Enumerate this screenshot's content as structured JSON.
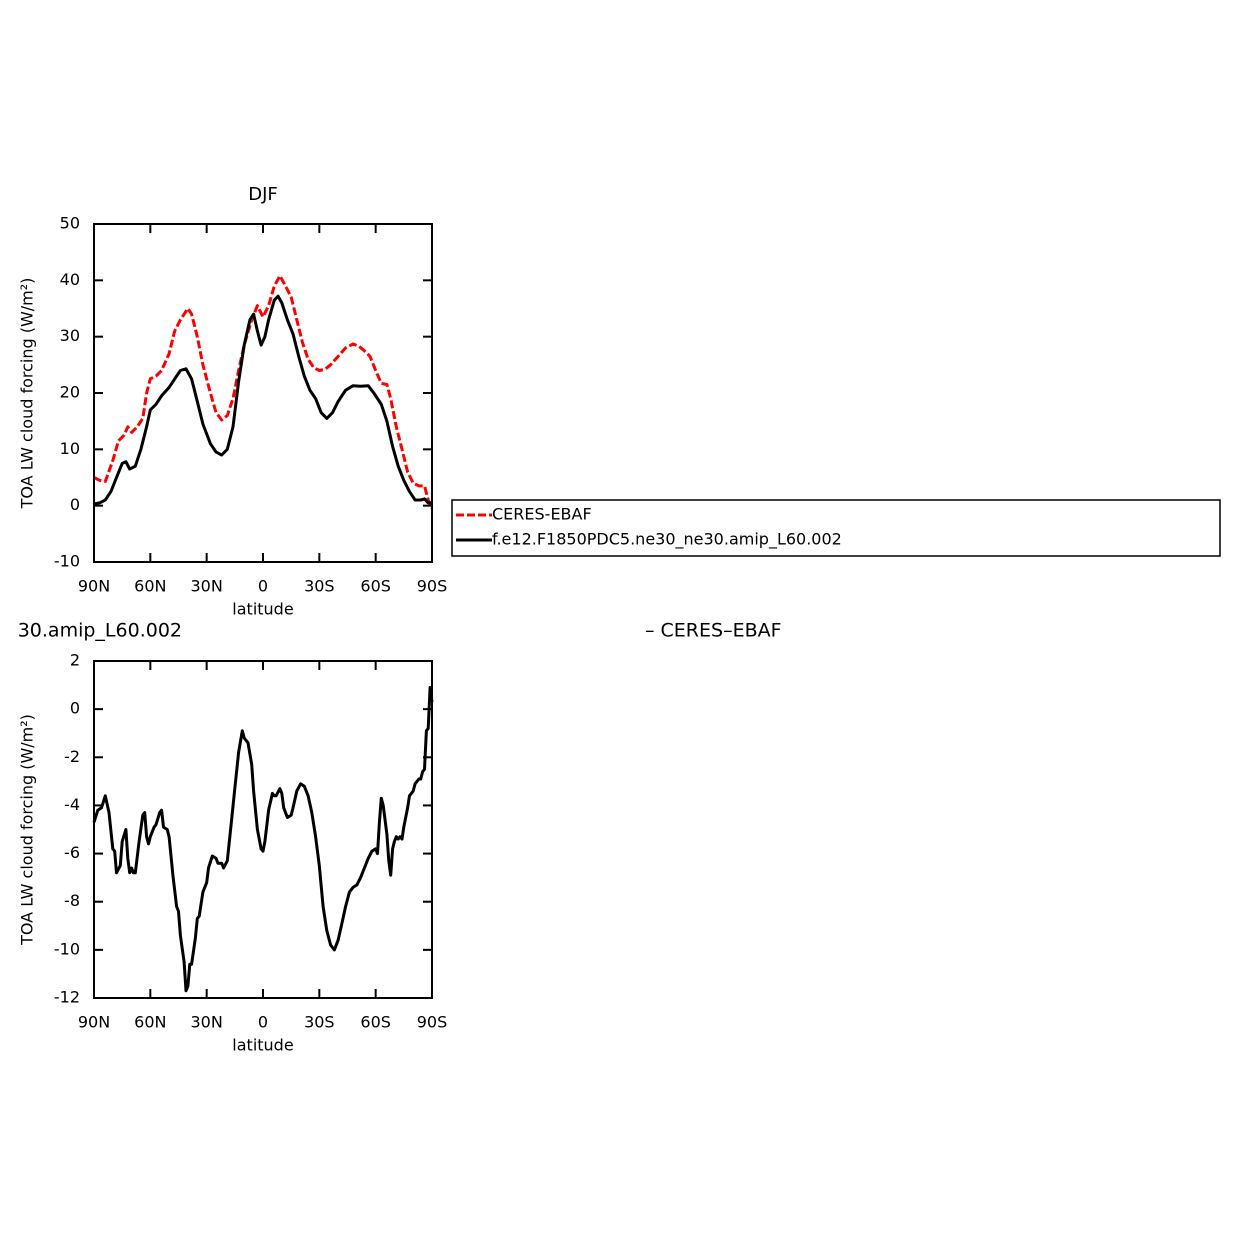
{
  "chart_data": [
    {
      "type": "line",
      "title": "DJF",
      "x_label": "latitude",
      "y_label": "TOA LW cloud forcing (W/m²)",
      "xlim": [
        90,
        -90
      ],
      "xticks": [
        {
          "value": 90,
          "label": "90N"
        },
        {
          "value": 60,
          "label": "60N"
        },
        {
          "value": 30,
          "label": "30N"
        },
        0,
        {
          "value": -30,
          "label": "30S"
        },
        {
          "value": -60,
          "label": "60S"
        },
        {
          "value": -90,
          "label": "90S"
        }
      ],
      "ylim": [
        -10,
        50
      ],
      "yticks": [
        -10,
        0,
        10,
        20,
        30,
        40,
        50
      ],
      "legend": "right",
      "series": [
        {
          "name": "CERES-EBAF",
          "color": "#ff0000",
          "dash": true,
          "x": [
            90,
            87,
            84,
            80,
            77,
            74,
            72,
            70,
            67,
            64,
            62,
            60,
            57,
            54,
            50,
            47,
            44,
            40,
            38,
            35,
            32,
            28,
            25,
            22,
            19,
            16,
            13,
            10,
            6,
            3,
            0,
            -3,
            -6,
            -9,
            -12,
            -15,
            -18,
            -21,
            -24,
            -27,
            -30,
            -33,
            -36,
            -40,
            -44,
            -48,
            -51,
            -54,
            -57,
            -60,
            -63,
            -66,
            -68,
            -71,
            -74,
            -77,
            -80,
            -83,
            -86,
            -88,
            -90
          ],
          "values": [
            5,
            4.5,
            4.3,
            8,
            11.5,
            12.5,
            14,
            13,
            14,
            15.5,
            20,
            22.5,
            23,
            24,
            27,
            31,
            33,
            35,
            34,
            30,
            25,
            20,
            16.5,
            15.2,
            16,
            19,
            24,
            28.5,
            33,
            35.5,
            33.5,
            35.5,
            39,
            40.8,
            39,
            37,
            33,
            29,
            26,
            24.5,
            24,
            24.2,
            25,
            26.5,
            28,
            28.7,
            28.3,
            27.5,
            26.5,
            24,
            21.7,
            21.5,
            19,
            14,
            10,
            6,
            4,
            3.5,
            3.5,
            1,
            -0.5
          ]
        },
        {
          "name": "f.e12.F1850PDC5.ne30_ne30.amip_L60.002",
          "color": "#000000",
          "dash": false,
          "x": [
            90,
            87,
            84,
            81,
            78,
            75,
            73,
            71,
            68,
            65,
            62,
            60,
            57,
            54,
            50,
            47,
            44,
            41,
            38,
            35,
            32,
            28,
            25,
            22,
            19,
            16,
            13,
            10,
            7,
            5,
            3,
            1,
            -1,
            -3,
            -6,
            -8,
            -10,
            -13,
            -16,
            -19,
            -22,
            -25,
            -28,
            -31,
            -34,
            -37,
            -40,
            -44,
            -48,
            -52,
            -56,
            -59,
            -63,
            -66,
            -69,
            -72,
            -75,
            -78,
            -81,
            -84,
            -86,
            -88,
            -90
          ],
          "values": [
            0.3,
            0.5,
            1,
            2.5,
            5,
            7.5,
            7.8,
            6.5,
            7,
            10,
            14,
            17,
            18,
            19.5,
            21,
            22.5,
            24,
            24.3,
            22.5,
            18.5,
            14.5,
            11,
            9.5,
            9,
            10,
            14,
            22,
            28.5,
            33,
            34,
            31,
            28.5,
            30,
            33,
            36.5,
            37.2,
            36,
            33,
            30.5,
            26.5,
            23,
            20.5,
            19,
            16.5,
            15.5,
            16.5,
            18.5,
            20.5,
            21.3,
            21.2,
            21.3,
            20,
            18,
            15,
            10.5,
            7,
            4.5,
            2.5,
            1,
            1,
            1.2,
            0.5,
            0.5
          ]
        }
      ]
    },
    {
      "type": "line",
      "title": "30.amip_L60.002",
      "subtitle": "– CERES–EBAF",
      "x_label": "latitude",
      "y_label": "TOA LW cloud forcing (W/m²)",
      "xlim": [
        90,
        -90
      ],
      "xticks": [
        {
          "value": 90,
          "label": "90N"
        },
        {
          "value": 60,
          "label": "60N"
        },
        {
          "value": 30,
          "label": "30N"
        },
        0,
        {
          "value": -30,
          "label": "30S"
        },
        {
          "value": -60,
          "label": "60S"
        },
        {
          "value": -90,
          "label": "90S"
        }
      ],
      "ylim": [
        -12,
        2
      ],
      "yticks": [
        -12,
        -10,
        -8,
        -6,
        -4,
        -2,
        0,
        2
      ],
      "series": [
        {
          "color": "#000000",
          "dash": false,
          "x": [
            90,
            88,
            86,
            84,
            82,
            80,
            79,
            78,
            76,
            75,
            73,
            72,
            71,
            70,
            69,
            68,
            66,
            64,
            63,
            62,
            61,
            60,
            58,
            57,
            55,
            54,
            53,
            51,
            50,
            48,
            46,
            45,
            44,
            42,
            41,
            40,
            39,
            38,
            36,
            35,
            34,
            32,
            30,
            29,
            27,
            25,
            24,
            22,
            21,
            19,
            17,
            15,
            13,
            11,
            10,
            8,
            6,
            5,
            3,
            1,
            0,
            -1,
            -3,
            -5,
            -6,
            -7,
            -9,
            -10,
            -11,
            -13,
            -15,
            -16,
            -18,
            -20,
            -22,
            -24,
            -26,
            -28,
            -30,
            -32,
            -34,
            -36,
            -38,
            -40,
            -42,
            -44,
            -46,
            -48,
            -50,
            -52,
            -54,
            -56,
            -58,
            -60,
            -61,
            -62,
            -63,
            -64,
            -66,
            -67,
            -68,
            -69,
            -70,
            -71,
            -72,
            -73,
            -74,
            -75,
            -77,
            -78,
            -80,
            -81,
            -83,
            -84,
            -85,
            -86,
            -87,
            -88,
            -89,
            -90
          ],
          "values": [
            -4.7,
            -4.2,
            -4.1,
            -3.6,
            -4.3,
            -5.8,
            -5.9,
            -6.8,
            -6.5,
            -5.5,
            -5.0,
            -6.2,
            -6.8,
            -6.6,
            -6.8,
            -6.8,
            -5.5,
            -4.4,
            -4.3,
            -5.3,
            -5.6,
            -5.3,
            -4.9,
            -4.8,
            -4.3,
            -4.2,
            -4.9,
            -5.0,
            -5.3,
            -6.9,
            -8.2,
            -8.4,
            -9.4,
            -10.5,
            -11.7,
            -11.5,
            -10.6,
            -10.6,
            -9.5,
            -8.7,
            -8.6,
            -7.6,
            -7.2,
            -6.6,
            -6.1,
            -6.2,
            -6.4,
            -6.4,
            -6.6,
            -6.3,
            -4.8,
            -3.3,
            -1.8,
            -0.9,
            -1.2,
            -1.4,
            -2.3,
            -3.4,
            -5.0,
            -5.8,
            -5.9,
            -5.5,
            -4.2,
            -3.5,
            -3.6,
            -3.6,
            -3.3,
            -3.5,
            -4.1,
            -4.5,
            -4.4,
            -4.1,
            -3.4,
            -3.1,
            -3.2,
            -3.6,
            -4.3,
            -5.3,
            -6.5,
            -8.2,
            -9.2,
            -9.8,
            -10.0,
            -9.6,
            -8.9,
            -8.2,
            -7.6,
            -7.4,
            -7.3,
            -7.0,
            -6.6,
            -6.2,
            -5.9,
            -5.8,
            -6.0,
            -4.7,
            -3.7,
            -4.0,
            -5.2,
            -6.3,
            -6.9,
            -5.8,
            -5.5,
            -5.3,
            -5.4,
            -5.3,
            -5.4,
            -4.9,
            -4.1,
            -3.6,
            -3.4,
            -3.1,
            -2.9,
            -2.9,
            -2.6,
            -2.5,
            -0.9,
            -0.8,
            0.9,
            0.3
          ]
        }
      ]
    }
  ]
}
